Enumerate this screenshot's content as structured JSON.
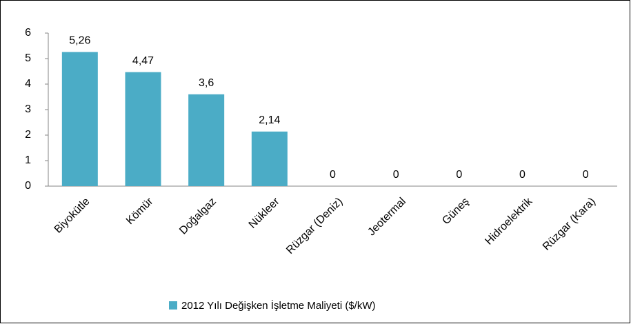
{
  "chart_data": {
    "type": "bar",
    "categories": [
      "Biyokütle",
      "Kömür",
      "Doğalgaz",
      "Nükleer",
      "Rüzgar (Deniz)",
      "Jeotermal",
      "Güneş",
      "Hidroelektrik",
      "Rüzgar (Kara)"
    ],
    "series": [
      {
        "name": "2012 Yılı Değişken İşletme Maliyeti ($/kW)",
        "color": "#4bacc6",
        "values": [
          5.26,
          4.47,
          3.6,
          2.14,
          0,
          0,
          0,
          0,
          0
        ],
        "value_labels": [
          "5,26",
          "4,47",
          "3,6",
          "2,14",
          "0",
          "0",
          "0",
          "0",
          "0"
        ]
      }
    ],
    "ylim": [
      0,
      6
    ],
    "yticks": [
      0,
      1,
      2,
      3,
      4,
      5,
      6
    ],
    "grid": false,
    "legend": "bottom"
  }
}
